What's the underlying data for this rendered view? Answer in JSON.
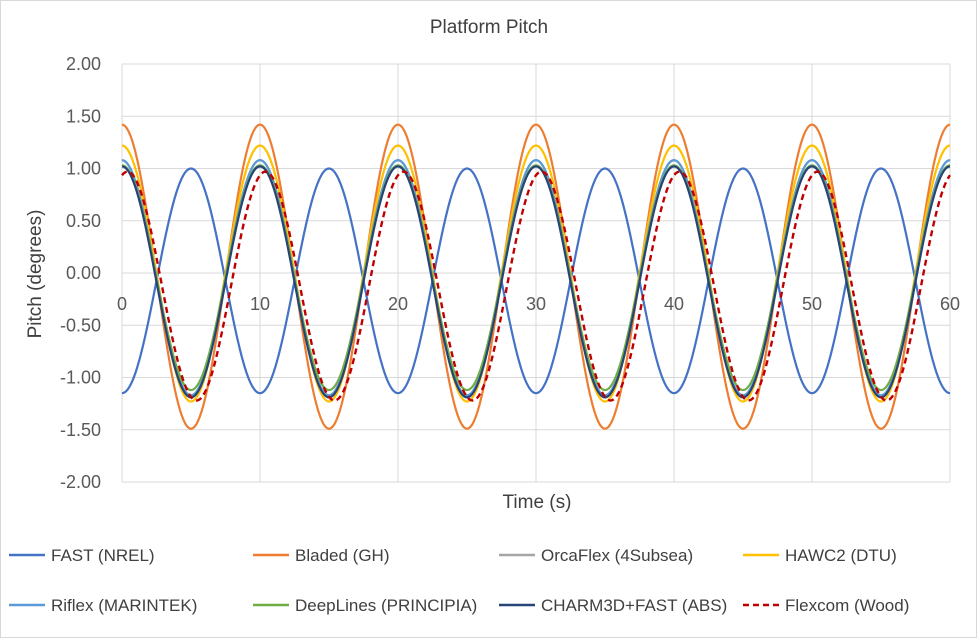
{
  "chart_data": {
    "type": "line",
    "title": "Platform Pitch",
    "xlabel": "Time (s)",
    "ylabel": "Pitch (degrees)",
    "xlim": [
      0,
      60
    ],
    "ylim": [
      -2.0,
      2.0
    ],
    "x_ticks": [
      "0",
      "10",
      "20",
      "30",
      "40",
      "50",
      "60"
    ],
    "y_ticks": [
      "2.00",
      "1.50",
      "1.00",
      "0.50",
      "0.00",
      "-0.50",
      "-1.00",
      "-1.50",
      "-2.00"
    ],
    "grid": true,
    "legend_position": "bottom",
    "period_s": 10,
    "series": [
      {
        "name": "FAST (NREL)",
        "color": "#4472C4",
        "dash": "solid",
        "amplitude_max": 1.0,
        "amplitude_min": -1.15,
        "value_at_0": -1.15,
        "peak_times": [
          5,
          15,
          25,
          35,
          45,
          55
        ]
      },
      {
        "name": "Bladed (GH)",
        "color": "#ED7D31",
        "dash": "solid",
        "amplitude_max": 1.42,
        "amplitude_min": -1.49,
        "value_at_0": 1.38,
        "peak_times": [
          0,
          10,
          20,
          30,
          40,
          50,
          60
        ]
      },
      {
        "name": "OrcaFlex (4Subsea)",
        "color": "#A5A5A5",
        "dash": "solid",
        "amplitude_max": 1.08,
        "amplitude_min": -1.18,
        "value_at_0": 1.06,
        "peak_times": [
          0,
          10,
          20,
          30,
          40,
          50,
          60
        ]
      },
      {
        "name": "HAWC2 (DTU)",
        "color": "#FFC000",
        "dash": "solid",
        "amplitude_max": 1.22,
        "amplitude_min": -1.23,
        "value_at_0": 1.19,
        "peak_times": [
          0,
          10,
          20,
          30,
          40,
          50,
          60
        ]
      },
      {
        "name": "Riflex (MARINTEK)",
        "color": "#5B9BD5",
        "dash": "solid",
        "amplitude_max": 1.08,
        "amplitude_min": -1.17,
        "value_at_0": 1.07,
        "peak_times": [
          0,
          10,
          20,
          30,
          40,
          50,
          60
        ]
      },
      {
        "name": "DeepLines (PRINCIPIA)",
        "color": "#70AD47",
        "dash": "solid",
        "amplitude_max": 1.03,
        "amplitude_min": -1.12,
        "value_at_0": 1.0,
        "peak_times": [
          0,
          10,
          20,
          30,
          40,
          50,
          60
        ]
      },
      {
        "name": "CHARM3D+FAST (ABS)",
        "color": "#264478",
        "dash": "solid",
        "amplitude_max": 1.02,
        "amplitude_min": -1.19,
        "value_at_0": 0.99,
        "peak_times": [
          0,
          10,
          20,
          30,
          40,
          50,
          60
        ]
      },
      {
        "name": "Flexcom (Wood)",
        "color": "#C00000",
        "dash": "dashed",
        "amplitude_max": 0.97,
        "amplitude_min": -1.22,
        "value_at_0": 0.96,
        "peak_times": [
          0.4,
          10.4,
          20.4,
          30.4,
          40.4,
          50.4,
          60.4
        ]
      }
    ]
  }
}
